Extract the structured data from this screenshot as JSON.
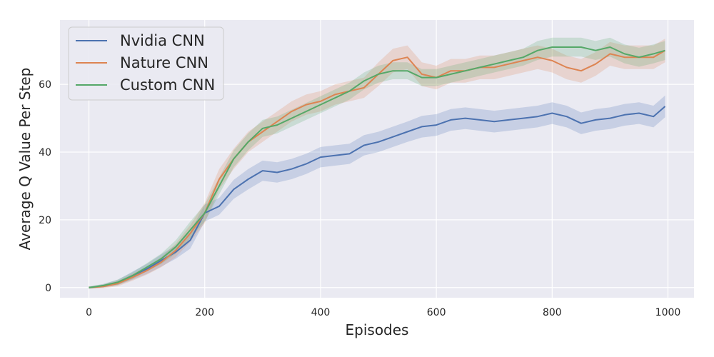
{
  "chart_data": {
    "type": "line",
    "title": "",
    "xlabel": "Episodes",
    "ylabel": "Average Q Value Per Step",
    "xlim": [
      -50,
      1045
    ],
    "ylim": [
      -3,
      79
    ],
    "xticks": [
      0,
      200,
      400,
      600,
      800,
      1000
    ],
    "yticks": [
      0,
      20,
      40,
      60
    ],
    "grid": true,
    "legend_position": "top-left",
    "colors": {
      "background": "#eaeaf2",
      "grid": "#ffffff"
    },
    "x": [
      0,
      25,
      50,
      75,
      100,
      125,
      150,
      175,
      200,
      225,
      250,
      275,
      300,
      325,
      350,
      375,
      400,
      425,
      450,
      475,
      500,
      525,
      550,
      575,
      600,
      625,
      650,
      675,
      700,
      725,
      750,
      775,
      800,
      825,
      850,
      875,
      900,
      925,
      950,
      975,
      995
    ],
    "series": [
      {
        "name": "Nvidia CNN",
        "color": "#4c72b0",
        "values": [
          0,
          0.5,
          1.5,
          3.5,
          5.5,
          8,
          10.5,
          14,
          22,
          24,
          29,
          32,
          34.5,
          34,
          35,
          36.5,
          38.5,
          39,
          39.5,
          42,
          43,
          44.5,
          46,
          47.5,
          48,
          49.5,
          50,
          49.5,
          49,
          49.5,
          50,
          50.5,
          51.5,
          50.5,
          48.5,
          49.5,
          50,
          51,
          51.5,
          50.5,
          53.5
        ],
        "band": [
          0.3,
          0.5,
          0.8,
          1.2,
          1.5,
          1.8,
          2,
          2.5,
          2.5,
          2.5,
          2.8,
          3,
          3,
          3,
          3,
          3,
          3,
          3,
          3,
          3,
          3,
          3,
          3,
          3.2,
          3.2,
          3.2,
          3.2,
          3.2,
          3.2,
          3.2,
          3.2,
          3.2,
          3.2,
          3.2,
          3.2,
          3.2,
          3.2,
          3.2,
          3.2,
          3.2,
          3.2
        ]
      },
      {
        "name": "Nature CNN",
        "color": "#dd8452",
        "values": [
          0,
          0.3,
          1.2,
          3,
          5,
          7.5,
          11,
          16,
          22,
          32,
          38,
          43,
          46,
          49,
          52,
          54,
          55,
          57,
          58,
          59,
          63,
          67,
          68,
          63,
          62,
          64,
          64,
          65,
          65,
          66,
          67,
          68,
          67,
          65,
          64,
          66,
          69,
          68,
          68,
          68,
          70
        ],
        "band": [
          0.3,
          0.5,
          0.8,
          1,
          1.2,
          1.5,
          2,
          2.5,
          3,
          3,
          3,
          3,
          3,
          3,
          3,
          3,
          3,
          3,
          3,
          3,
          3.5,
          3.5,
          3.5,
          3.5,
          3.5,
          3.5,
          3.5,
          3.5,
          3.5,
          3.5,
          3.5,
          3.5,
          3.5,
          3.5,
          3.5,
          3.5,
          3.5,
          3.5,
          3.5,
          3.5,
          3.5
        ]
      },
      {
        "name": "Custom CNN",
        "color": "#55a868",
        "values": [
          0,
          0.6,
          1.6,
          3.5,
          6,
          8.5,
          12,
          17,
          22,
          30,
          38,
          43,
          47,
          48,
          50,
          52,
          54,
          56,
          58,
          61,
          63,
          64,
          64,
          62,
          62,
          63,
          64,
          65,
          66,
          67,
          68,
          70,
          71,
          71,
          71,
          70,
          71,
          69,
          68,
          69,
          70
        ],
        "band": [
          0.3,
          0.5,
          0.8,
          1,
          1.2,
          1.5,
          2,
          2.5,
          2.5,
          2.5,
          2.5,
          2.5,
          2.5,
          2.5,
          2.5,
          2.5,
          2.5,
          2.5,
          2.5,
          2.5,
          2.5,
          2.5,
          2.5,
          2.5,
          2.5,
          2.5,
          2.5,
          2.5,
          2.5,
          2.5,
          2.5,
          2.8,
          2.8,
          2.8,
          2.8,
          2.8,
          2.8,
          2.8,
          2.8,
          2.8,
          2.8
        ]
      }
    ]
  }
}
